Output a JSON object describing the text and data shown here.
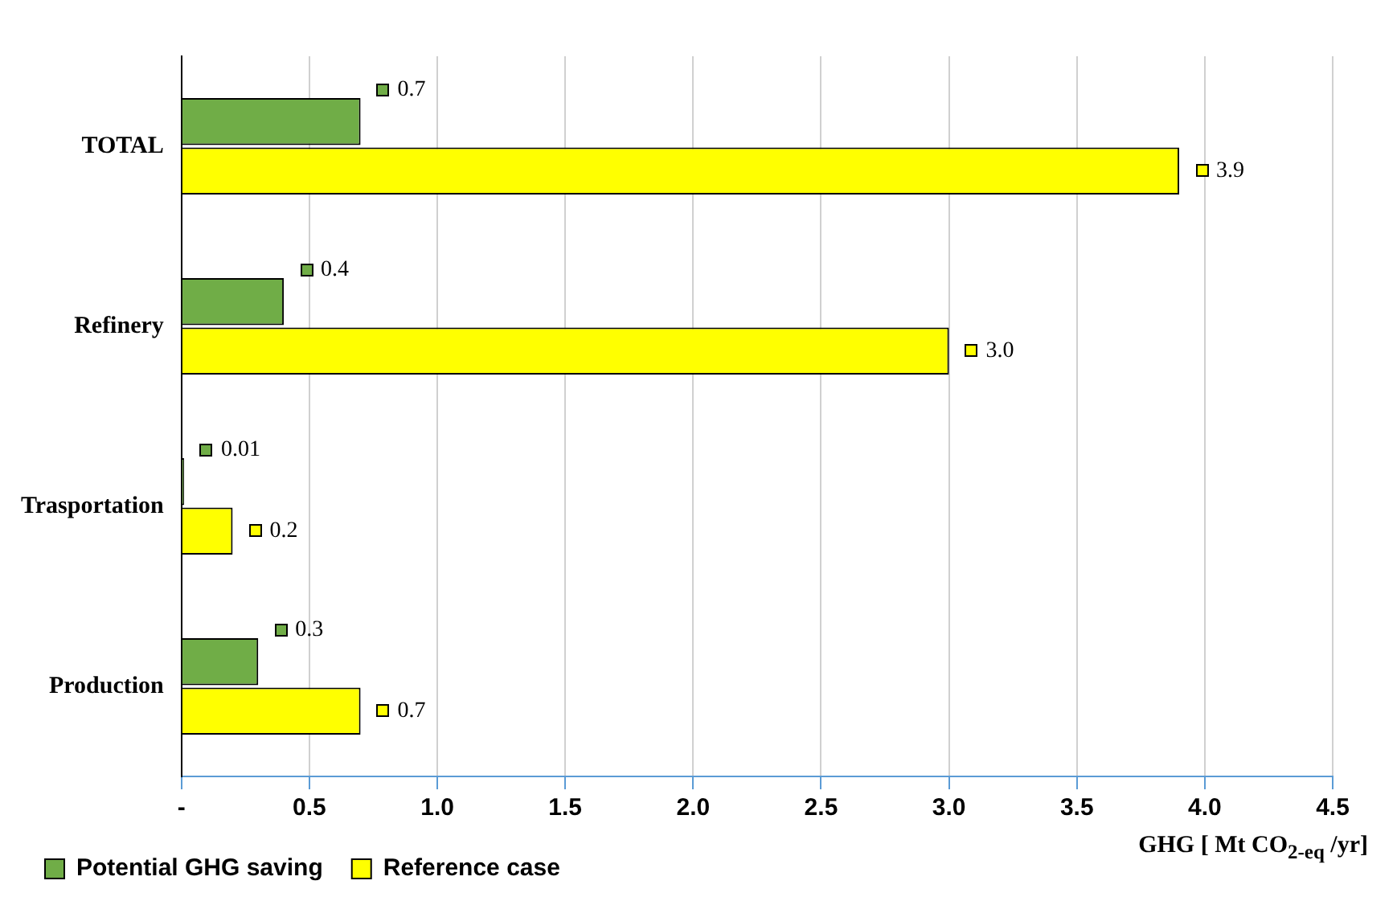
{
  "chart_data": {
    "type": "bar",
    "orientation": "horizontal",
    "xlabel": "GHG [ Mt CO$_{2-eq}$ /yr]",
    "categories": [
      "TOTAL",
      "Refinery",
      "Trasportation",
      "Production"
    ],
    "series": [
      {
        "name": "Potential GHG saving",
        "color": "#70ad47",
        "values": [
          0.7,
          0.4,
          0.01,
          0.3
        ],
        "value_labels": [
          "0.7",
          "0.4",
          "0.01",
          "0.3"
        ]
      },
      {
        "name": "Reference case",
        "color": "#ffff00",
        "values": [
          3.9,
          3.0,
          0.2,
          0.7
        ],
        "value_labels": [
          "3.9",
          "3.0",
          "0.2",
          "0.7"
        ]
      }
    ],
    "xlim": [
      0,
      4.5
    ],
    "xticks": [
      {
        "value": 0,
        "label": "-"
      },
      0.5,
      {
        "value": 1,
        "label": "1.0"
      },
      1.5,
      {
        "value": 2,
        "label": "2.0"
      },
      2.5,
      {
        "value": 3,
        "label": "3.0"
      },
      3.5,
      {
        "value": 4,
        "label": "4.0"
      },
      4.5
    ],
    "grid": "x",
    "legend": "bottom"
  }
}
